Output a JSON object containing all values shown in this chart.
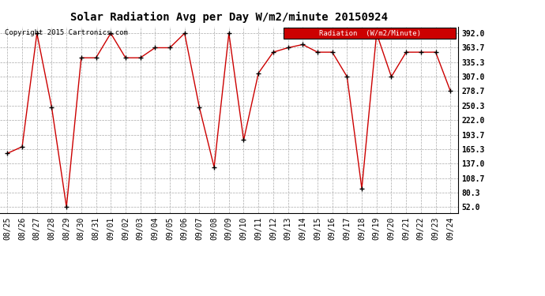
{
  "title": "Solar Radiation Avg per Day W/m2/minute 20150924",
  "copyright": "Copyright 2015 Cartronics.com",
  "legend_label": "Radiation  (W/m2/Minute)",
  "dates": [
    "08/25",
    "08/26",
    "08/27",
    "08/28",
    "08/29",
    "08/30",
    "08/31",
    "09/01",
    "09/02",
    "09/03",
    "09/04",
    "09/05",
    "09/06",
    "09/07",
    "09/08",
    "09/09",
    "09/10",
    "09/11",
    "09/12",
    "09/13",
    "09/14",
    "09/15",
    "09/16",
    "09/17",
    "09/18",
    "09/19",
    "09/20",
    "09/21",
    "09/22",
    "09/23",
    "09/24"
  ],
  "values": [
    157.0,
    170.0,
    392.0,
    247.0,
    52.0,
    344.0,
    344.0,
    392.0,
    344.0,
    344.0,
    363.7,
    363.7,
    392.0,
    247.0,
    130.0,
    392.0,
    183.0,
    314.0,
    355.0,
    363.7,
    370.0,
    355.0,
    355.0,
    307.0,
    88.0,
    392.0,
    307.0,
    355.0,
    355.0,
    355.0,
    278.7
  ],
  "line_color": "#cc0000",
  "marker_color": "#000000",
  "bg_color": "#ffffff",
  "grid_color": "#aaaaaa",
  "yticks": [
    52.0,
    80.3,
    108.7,
    137.0,
    165.3,
    193.7,
    222.0,
    250.3,
    278.7,
    307.0,
    335.3,
    363.7,
    392.0
  ],
  "ylim": [
    40.0,
    405.0
  ],
  "legend_bg": "#cc0000",
  "legend_text_color": "#ffffff",
  "title_fontsize": 10,
  "tick_fontsize": 7,
  "copyright_fontsize": 6.5
}
